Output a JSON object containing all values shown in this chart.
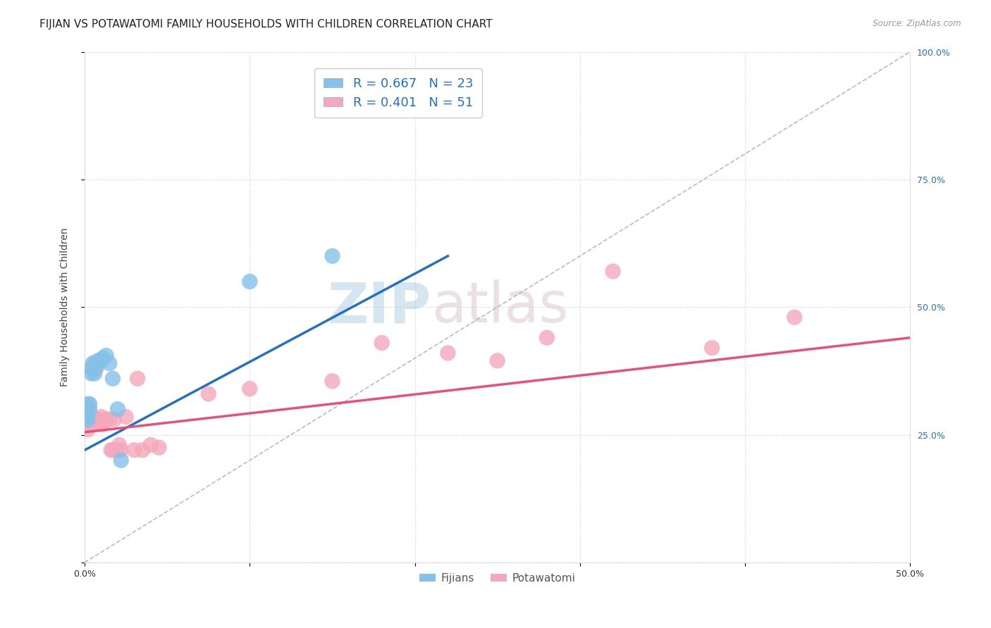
{
  "title": "FIJIAN VS POTAWATOMI FAMILY HOUSEHOLDS WITH CHILDREN CORRELATION CHART",
  "source": "Source: ZipAtlas.com",
  "ylabel": "Family Households with Children",
  "xlim": [
    0.0,
    0.5
  ],
  "ylim": [
    0.0,
    1.0
  ],
  "fijian_color": "#85C1E8",
  "potawatomi_color": "#F4A8BB",
  "fijian_line_color": "#2471C4",
  "potawatomi_line_color": "#E8507A",
  "diagonal_color": "#BBBBBB",
  "watermark_zip": "ZIP",
  "watermark_atlas": "atlas",
  "grid_color": "#CCCCCC",
  "background_color": "#FFFFFF",
  "title_fontsize": 11,
  "axis_label_fontsize": 10,
  "tick_fontsize": 9,
  "legend_fijian_label": "R = 0.667   N = 23",
  "legend_potawatomi_label": "R = 0.401   N = 51",
  "fijian_scatter_x": [
    0.001,
    0.001,
    0.001,
    0.002,
    0.002,
    0.002,
    0.003,
    0.003,
    0.004,
    0.004,
    0.005,
    0.006,
    0.007,
    0.008,
    0.01,
    0.011,
    0.013,
    0.015,
    0.017,
    0.02,
    0.022,
    0.1,
    0.15
  ],
  "fijian_scatter_y": [
    0.28,
    0.29,
    0.3,
    0.28,
    0.3,
    0.31,
    0.3,
    0.31,
    0.37,
    0.38,
    0.39,
    0.37,
    0.385,
    0.395,
    0.395,
    0.4,
    0.405,
    0.39,
    0.36,
    0.3,
    0.2,
    0.55,
    0.6
  ],
  "potawatomi_scatter_x": [
    0.001,
    0.001,
    0.001,
    0.002,
    0.002,
    0.002,
    0.002,
    0.003,
    0.003,
    0.003,
    0.003,
    0.004,
    0.004,
    0.004,
    0.005,
    0.005,
    0.005,
    0.006,
    0.006,
    0.007,
    0.007,
    0.008,
    0.008,
    0.009,
    0.01,
    0.011,
    0.012,
    0.013,
    0.015,
    0.016,
    0.017,
    0.018,
    0.02,
    0.021,
    0.022,
    0.025,
    0.03,
    0.032,
    0.035,
    0.04,
    0.045,
    0.075,
    0.1,
    0.15,
    0.18,
    0.22,
    0.25,
    0.28,
    0.32,
    0.38,
    0.43
  ],
  "potawatomi_scatter_y": [
    0.28,
    0.29,
    0.295,
    0.26,
    0.275,
    0.28,
    0.3,
    0.27,
    0.275,
    0.28,
    0.285,
    0.275,
    0.28,
    0.285,
    0.27,
    0.275,
    0.38,
    0.27,
    0.39,
    0.275,
    0.38,
    0.275,
    0.275,
    0.28,
    0.285,
    0.27,
    0.275,
    0.28,
    0.28,
    0.22,
    0.22,
    0.28,
    0.22,
    0.23,
    0.22,
    0.285,
    0.22,
    0.36,
    0.22,
    0.23,
    0.225,
    0.33,
    0.34,
    0.355,
    0.43,
    0.41,
    0.395,
    0.44,
    0.57,
    0.42,
    0.48
  ]
}
